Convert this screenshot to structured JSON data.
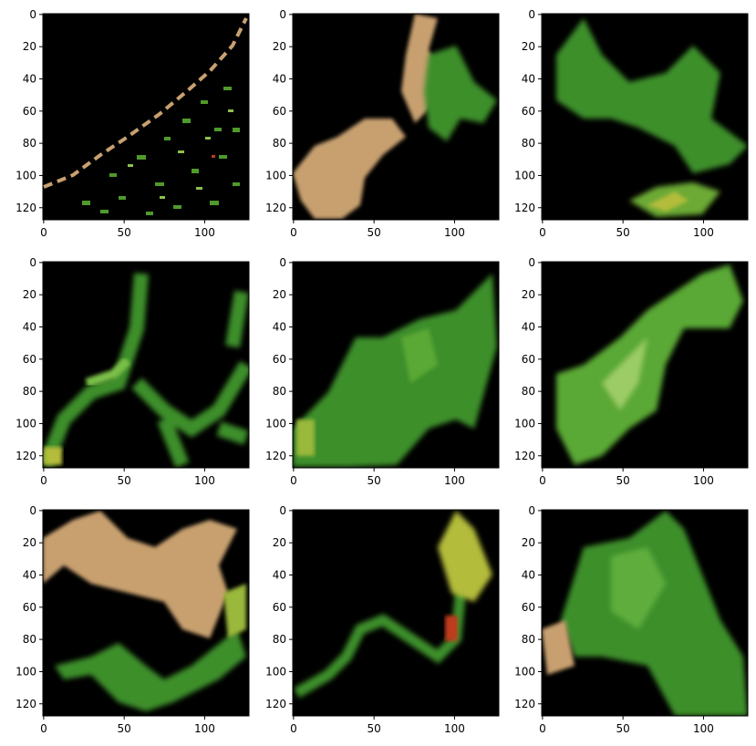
{
  "figure": {
    "grid": [
      3,
      3
    ],
    "image_size": 128,
    "x_ticks": [
      "0",
      "50",
      "100"
    ],
    "y_ticks": [
      "0",
      "20",
      "40",
      "60",
      "80",
      "100",
      "120"
    ],
    "background_color": "#000000",
    "tile_colors": {
      "tan": "#c8a070",
      "green": "#3c8f2c",
      "light_green": "#7cc04a",
      "yellow_green": "#b4bc3a",
      "red": "#c03a1c"
    }
  },
  "panels": [
    {
      "id": "panel-1",
      "content": "sparse-edge"
    },
    {
      "id": "panel-2",
      "content": "tan-and-green"
    },
    {
      "id": "panel-3",
      "content": "green-blob"
    },
    {
      "id": "panel-4",
      "content": "green-branches"
    },
    {
      "id": "panel-5",
      "content": "green-diagonal"
    },
    {
      "id": "panel-6",
      "content": "light-green-diagonal"
    },
    {
      "id": "panel-7",
      "content": "tan-top-green-bottom"
    },
    {
      "id": "panel-8",
      "content": "yellow-green-curve"
    },
    {
      "id": "panel-9",
      "content": "green-large"
    }
  ]
}
